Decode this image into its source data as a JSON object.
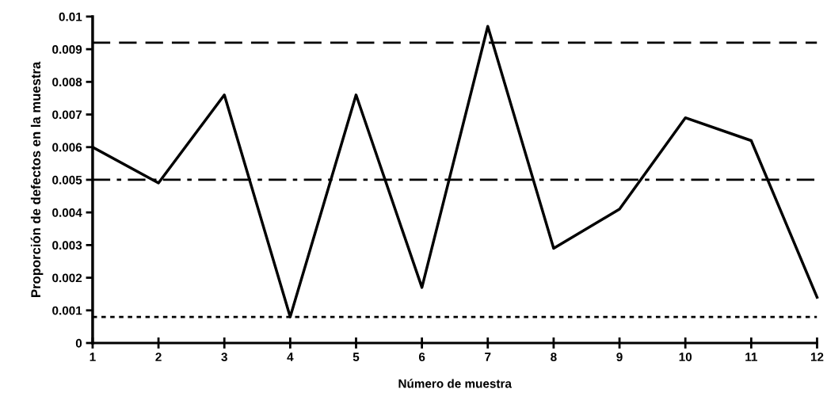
{
  "chart_data": {
    "type": "line",
    "xlabel": "Número de muestra",
    "ylabel": "Proporción de defectos en la muestra",
    "x": [
      1,
      2,
      3,
      4,
      5,
      6,
      7,
      8,
      9,
      10,
      11,
      12
    ],
    "series": [
      {
        "color": "#000000",
        "values": [
          0.006,
          0.0049,
          0.0076,
          0.0008,
          0.0076,
          0.0017,
          0.0097,
          0.0029,
          0.0041,
          0.0069,
          0.0062,
          0.0014
        ]
      }
    ],
    "xlim": [
      1,
      12
    ],
    "xticks": [
      1,
      2,
      3,
      4,
      5,
      6,
      7,
      8,
      9,
      10,
      11,
      12
    ],
    "ylim": [
      0,
      0.01
    ],
    "yticks": [
      0,
      0.001,
      0.002,
      0.003,
      0.004,
      0.005,
      0.006,
      0.007,
      0.008,
      0.009,
      0.01
    ],
    "ref_lines": [
      {
        "axis": "y",
        "value": 0.0092,
        "line_style": "dashed",
        "color": "#000000"
      },
      {
        "axis": "y",
        "value": 0.005,
        "line_style": "dashdot",
        "color": "#000000"
      },
      {
        "axis": "y",
        "value": 0.0008,
        "line_style": "dotted",
        "color": "#000000"
      }
    ],
    "grid": false,
    "legend": false,
    "marker": "none",
    "line_style": "solid"
  }
}
